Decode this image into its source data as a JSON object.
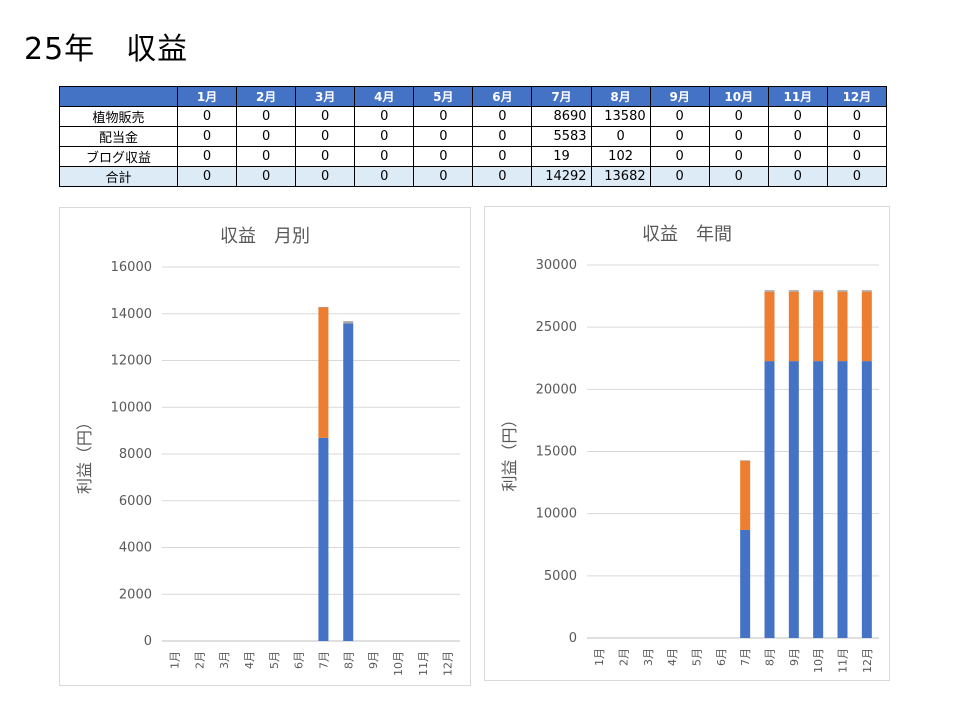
{
  "page": {
    "title": "25年　収益"
  },
  "table": {
    "header_blank": "",
    "months": [
      "1月",
      "2月",
      "3月",
      "4月",
      "5月",
      "6月",
      "7月",
      "8月",
      "9月",
      "10月",
      "11月",
      "12月"
    ],
    "rows": [
      {
        "label": "植物販売",
        "values": [
          0,
          0,
          0,
          0,
          0,
          0,
          8690,
          13580,
          0,
          0,
          0,
          0
        ]
      },
      {
        "label": "配当金",
        "values": [
          0,
          0,
          0,
          0,
          0,
          0,
          5583,
          0,
          0,
          0,
          0,
          0
        ]
      },
      {
        "label": "ブログ収益",
        "values": [
          0,
          0,
          0,
          0,
          0,
          0,
          19,
          102,
          0,
          0,
          0,
          0
        ]
      },
      {
        "label": "合計",
        "values": [
          0,
          0,
          0,
          0,
          0,
          0,
          14292,
          13682,
          0,
          0,
          0,
          0
        ]
      }
    ]
  },
  "colors": {
    "plant": "#4472c4",
    "dividend": "#ed7d31",
    "blog": "#a5a5a5",
    "header": "#4472c4",
    "total_row": "#ddebf7"
  },
  "chart_data": [
    {
      "type": "bar",
      "stacked": true,
      "title": "収益　月別",
      "xlabel": "",
      "ylabel": "利益（円）",
      "ylim": [
        0,
        16000
      ],
      "yticks": [
        0,
        2000,
        4000,
        6000,
        8000,
        10000,
        12000,
        14000,
        16000
      ],
      "categories": [
        "1月",
        "2月",
        "3月",
        "4月",
        "5月",
        "6月",
        "7月",
        "8月",
        "9月",
        "10月",
        "11月",
        "12月"
      ],
      "grid": true,
      "legend": "none",
      "series": [
        {
          "values": [
            0,
            0,
            0,
            0,
            0,
            0,
            8690,
            13580,
            0,
            0,
            0,
            0
          ],
          "color": "#4472c4"
        },
        {
          "values": [
            0,
            0,
            0,
            0,
            0,
            0,
            5583,
            0,
            0,
            0,
            0,
            0
          ],
          "color": "#ed7d31"
        },
        {
          "values": [
            0,
            0,
            0,
            0,
            0,
            0,
            19,
            102,
            0,
            0,
            0,
            0
          ],
          "color": "#a5a5a5"
        }
      ]
    },
    {
      "type": "bar",
      "stacked": true,
      "title": "収益　年間",
      "xlabel": "",
      "ylabel": "利益（円）",
      "ylim": [
        0,
        30000
      ],
      "yticks": [
        0,
        5000,
        10000,
        15000,
        20000,
        25000,
        30000
      ],
      "categories": [
        "1月",
        "2月",
        "3月",
        "4月",
        "5月",
        "6月",
        "7月",
        "8月",
        "9月",
        "10月",
        "11月",
        "12月"
      ],
      "grid": true,
      "legend": "none",
      "series": [
        {
          "values": [
            0,
            0,
            0,
            0,
            0,
            0,
            8690,
            22270,
            22270,
            22270,
            22270,
            22270
          ],
          "color": "#4472c4"
        },
        {
          "values": [
            0,
            0,
            0,
            0,
            0,
            0,
            5583,
            5583,
            5583,
            5583,
            5583,
            5583
          ],
          "color": "#ed7d31"
        },
        {
          "values": [
            0,
            0,
            0,
            0,
            0,
            0,
            19,
            121,
            121,
            121,
            121,
            121
          ],
          "color": "#a5a5a5"
        }
      ]
    }
  ]
}
